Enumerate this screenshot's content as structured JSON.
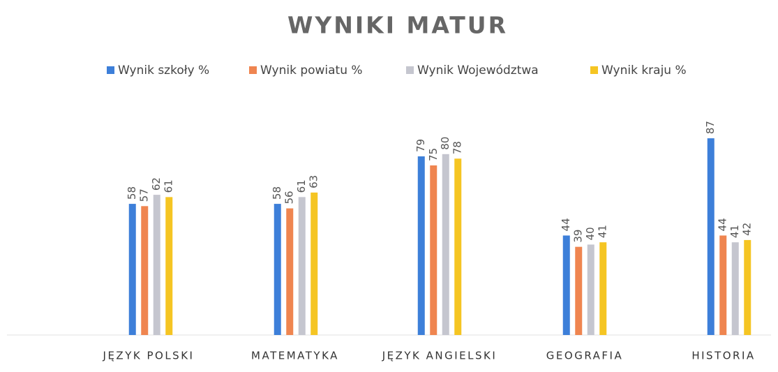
{
  "chart_data": {
    "type": "bar",
    "title": "WYNIKI MATUR",
    "categories": [
      "JĘZYK POLSKI",
      "MATEMATYKA",
      "JĘZYK ANGIELSKI",
      "GEOGRAFIA",
      "HISTORIA"
    ],
    "series": [
      {
        "name": "Wynik szkoły %",
        "color": "#3d7fd9",
        "values": [
          58,
          58,
          79,
          44,
          87
        ]
      },
      {
        "name": "Wynik powiatu %",
        "color": "#ef8550",
        "values": [
          57,
          56,
          75,
          39,
          44
        ]
      },
      {
        "name": "Wynik Województwa",
        "color": "#c5c6cf",
        "values": [
          62,
          61,
          80,
          40,
          41
        ]
      },
      {
        "name": "Wynik kraju %",
        "color": "#f5c523",
        "values": [
          61,
          63,
          78,
          41,
          42
        ]
      }
    ],
    "ylim": [
      0,
      100
    ],
    "legend": "top"
  }
}
